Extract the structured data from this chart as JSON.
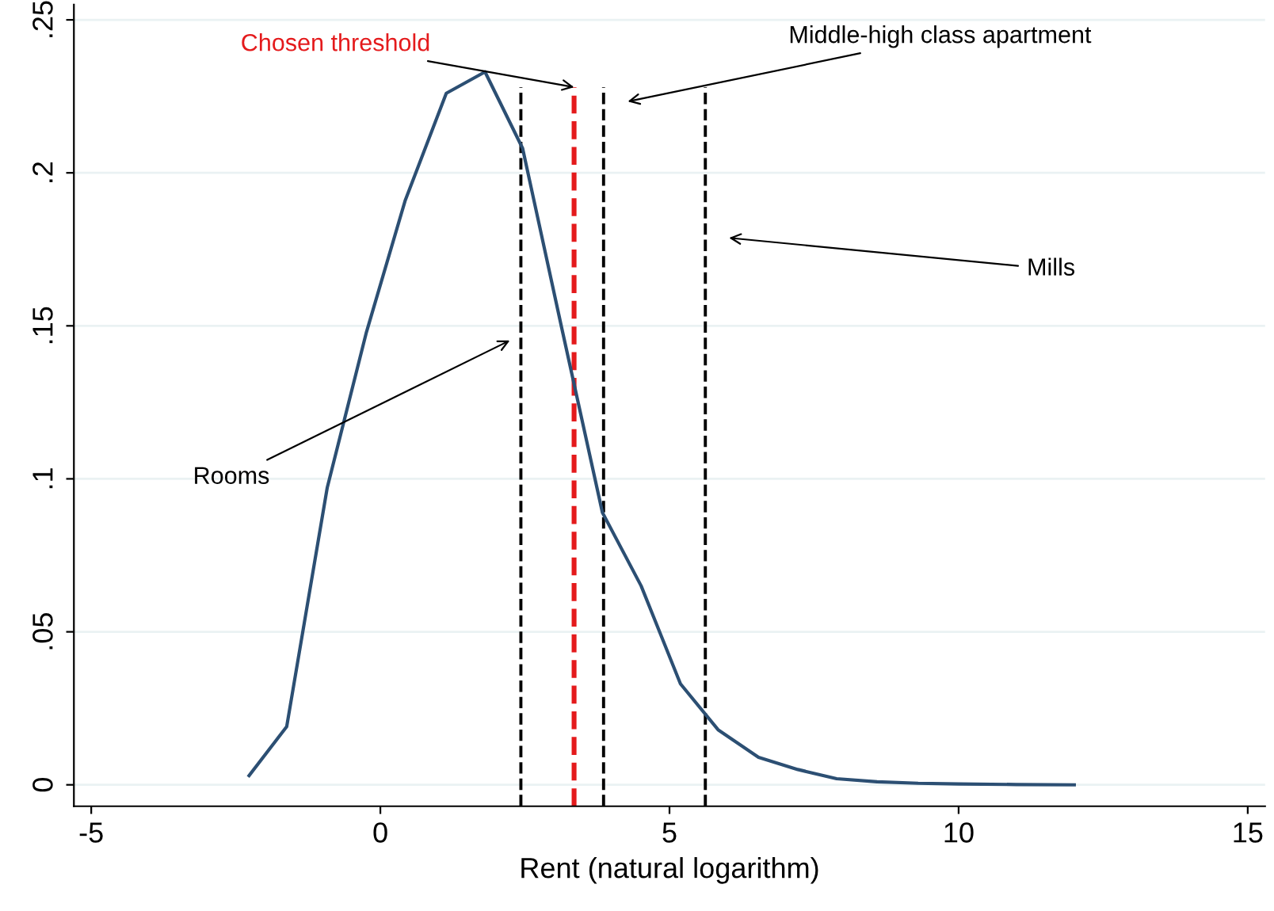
{
  "chart_data": {
    "type": "line",
    "xlabel": "Rent (natural logarithm)",
    "x": [
      -2.27,
      -1.62,
      -0.92,
      -0.24,
      0.43,
      1.14,
      1.81,
      2.46,
      3.14,
      3.84,
      4.51,
      5.19,
      5.84,
      6.54,
      7.22,
      7.89,
      8.59,
      9.3,
      10.0,
      11.0,
      12.0
    ],
    "series": [
      {
        "color": "#2c4f73",
        "values": [
          0.003,
          0.019,
          0.097,
          0.148,
          0.191,
          0.226,
          0.233,
          0.208,
          0.149,
          0.089,
          0.065,
          0.033,
          0.018,
          0.009,
          0.005,
          0.002,
          0.001,
          0.0005,
          0.0003,
          0.0001,
          0.0
        ]
      }
    ],
    "xlim": [
      -5.3,
      15.3
    ],
    "ylim": [
      -0.007,
      0.255
    ],
    "xticks": [
      -5,
      0,
      5,
      10,
      15
    ],
    "yticks": [
      {
        "value": 0,
        "label": "0"
      },
      {
        "value": 0.05,
        "label": ".05"
      },
      {
        "value": 0.1,
        "label": ".1"
      },
      {
        "value": 0.15,
        "label": ".15"
      },
      {
        "value": 0.2,
        "label": ".2"
      },
      {
        "value": 0.25,
        "label": ".25"
      }
    ],
    "grid": "y",
    "marker": "none",
    "line_style": "solid",
    "ref_lines": [
      {
        "axis": "x",
        "value": 2.43,
        "color": "#000000",
        "line_style": "dashed"
      },
      {
        "axis": "x",
        "value": 3.35,
        "color": "#e41a1c",
        "line_style": "dashed"
      },
      {
        "axis": "x",
        "value": 3.86,
        "color": "#000000",
        "line_style": "dashed"
      },
      {
        "axis": "x",
        "value": 5.62,
        "color": "#000000",
        "line_style": "dashed"
      }
    ],
    "annotations": [
      "Rooms",
      {
        "text": "Chosen threshold",
        "x": 3.35,
        "y": 0.228
      },
      "Middle-high class apartment",
      "Mills"
    ]
  }
}
